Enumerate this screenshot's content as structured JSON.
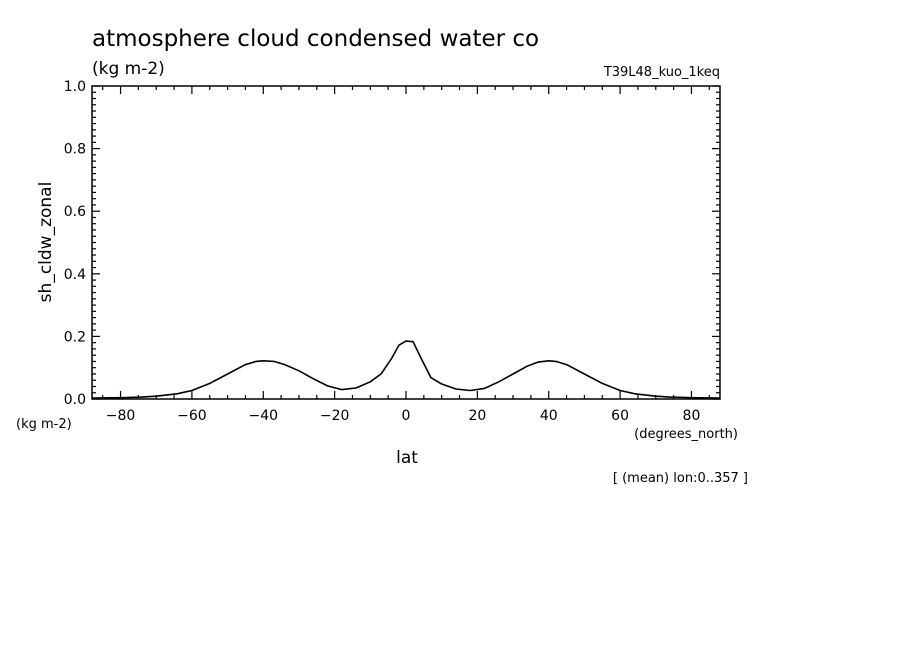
{
  "chart_data": {
    "type": "line",
    "title": "atmosphere cloud condensed water co",
    "units": "(kg m-2)",
    "experiment": "T39L48_kuo_1keq",
    "xlabel": "lat",
    "ylabel": "sh_cldw_zonal",
    "xunit": "(degrees_north)",
    "yunit": "(kg m-2)",
    "note": "[ (mean) lon:0..357 ]",
    "xlim": [
      -88,
      88
    ],
    "ylim": [
      0.0,
      1.0
    ],
    "xticks": [
      -80,
      -60,
      -40,
      -20,
      0,
      20,
      40,
      60,
      80
    ],
    "yticks": [
      "0.0",
      "0.2",
      "0.4",
      "0.6",
      "0.8",
      "1.0"
    ],
    "grid": false,
    "series": [
      {
        "x": [
          -88,
          -80,
          -74,
          -70,
          -64,
          -60,
          -55,
          -50,
          -45,
          -42,
          -40,
          -37,
          -34,
          -30,
          -26,
          -22,
          -18,
          -14,
          -10,
          -7,
          -4,
          -2,
          0,
          2,
          4,
          7,
          10,
          14,
          18,
          22,
          26,
          30,
          34,
          37,
          40,
          42,
          45,
          50,
          55,
          60,
          64,
          70,
          74,
          80,
          88
        ],
        "y": [
          0.003,
          0.004,
          0.006,
          0.009,
          0.017,
          0.027,
          0.05,
          0.08,
          0.11,
          0.12,
          0.122,
          0.12,
          0.11,
          0.09,
          0.065,
          0.042,
          0.03,
          0.035,
          0.055,
          0.08,
          0.13,
          0.172,
          0.185,
          0.183,
          0.135,
          0.068,
          0.048,
          0.032,
          0.027,
          0.034,
          0.055,
          0.08,
          0.105,
          0.118,
          0.122,
          0.12,
          0.11,
          0.08,
          0.05,
          0.027,
          0.017,
          0.009,
          0.006,
          0.004,
          0.003
        ]
      }
    ]
  }
}
